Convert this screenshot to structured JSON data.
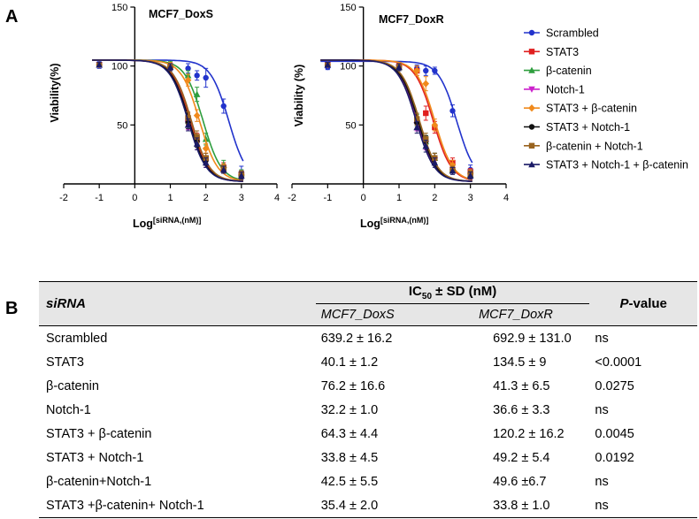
{
  "panel_a_label": "A",
  "panel_b_label": "B",
  "chart_data": [
    {
      "type": "scatter",
      "title": "MCF7_DoxS",
      "ylabel": "Viability(%)",
      "xlabel_prefix": "Log",
      "xlabel_sup": "[siRNA,(nM)]",
      "xlim": [
        -2,
        4
      ],
      "ylim": [
        0,
        150
      ],
      "xticks": [
        "-2",
        "-1",
        "0",
        "1",
        "2",
        "3",
        "4"
      ],
      "yticks": [
        "50",
        "100",
        "150"
      ],
      "x": [
        -1,
        1,
        1.5,
        1.75,
        2,
        2.5,
        3
      ],
      "series": [
        {
          "name": "Scrambled",
          "color": "#2233cc",
          "marker": "circle",
          "values": [
            101,
            100,
            98,
            92,
            90,
            66,
            10
          ],
          "err": [
            3,
            3,
            4,
            4,
            8,
            6,
            5
          ]
        },
        {
          "name": "STAT3",
          "color": "#e02020",
          "marker": "square",
          "values": [
            101,
            100,
            55,
            38,
            22,
            14,
            8
          ],
          "err": [
            2,
            3,
            5,
            5,
            4,
            4,
            3
          ]
        },
        {
          "name": "β-catenin",
          "color": "#2e9e3e",
          "marker": "triangle-up",
          "values": [
            101,
            101,
            92,
            76,
            38,
            16,
            9
          ],
          "err": [
            2,
            3,
            4,
            6,
            5,
            4,
            3
          ]
        },
        {
          "name": "Notch-1",
          "color": "#cc22cc",
          "marker": "triangle-down",
          "values": [
            101,
            99,
            51,
            34,
            18,
            12,
            7
          ],
          "err": [
            2,
            3,
            5,
            5,
            4,
            3,
            3
          ]
        },
        {
          "name": "STAT3 + β-catenin",
          "color": "#f08a1c",
          "marker": "diamond",
          "values": [
            101,
            100,
            88,
            58,
            30,
            14,
            8
          ],
          "err": [
            2,
            3,
            5,
            5,
            4,
            3,
            3
          ]
        },
        {
          "name": "STAT3 + Notch-1",
          "color": "#111111",
          "marker": "circle",
          "values": [
            101,
            99,
            52,
            36,
            20,
            12,
            7
          ],
          "err": [
            2,
            3,
            5,
            5,
            4,
            3,
            3
          ]
        },
        {
          "name": "β-catenin + Notch-1",
          "color": "#9a6420",
          "marker": "square",
          "values": [
            101,
            99,
            56,
            40,
            22,
            13,
            8
          ],
          "err": [
            2,
            3,
            5,
            5,
            4,
            3,
            3
          ]
        },
        {
          "name": "STAT3 + Notch-1 + β-catenin",
          "color": "#1a1a66",
          "marker": "triangle-up",
          "values": [
            101,
            99,
            50,
            34,
            18,
            12,
            7
          ],
          "err": [
            2,
            3,
            5,
            5,
            4,
            3,
            3
          ]
        }
      ]
    },
    {
      "type": "scatter",
      "title": "MCF7_DoxR",
      "ylabel": "Viability (%)",
      "xlabel_prefix": "Log",
      "xlabel_sup": "[siRNA,(nM)]",
      "xlim": [
        -2,
        4
      ],
      "ylim": [
        0,
        150
      ],
      "xticks": [
        "-2",
        "-1",
        "0",
        "1",
        "2",
        "3",
        "4"
      ],
      "yticks": [
        "50",
        "100",
        "150"
      ],
      "x": [
        -1,
        1,
        1.5,
        1.75,
        2,
        2.5,
        3
      ],
      "series": [
        {
          "name": "Scrambled",
          "color": "#2233cc",
          "marker": "circle",
          "values": [
            99,
            100,
            98,
            96,
            96,
            62,
            12
          ],
          "err": [
            2,
            3,
            3,
            4,
            3,
            5,
            4
          ]
        },
        {
          "name": "STAT3",
          "color": "#e02020",
          "marker": "square",
          "values": [
            101,
            100,
            96,
            60,
            48,
            18,
            10
          ],
          "err": [
            2,
            3,
            4,
            6,
            5,
            4,
            3
          ]
        },
        {
          "name": "β-catenin",
          "color": "#2e9e3e",
          "marker": "triangle-up",
          "values": [
            101,
            99,
            54,
            36,
            22,
            12,
            8
          ],
          "err": [
            2,
            3,
            5,
            5,
            4,
            3,
            3
          ]
        },
        {
          "name": "Notch-1",
          "color": "#cc22cc",
          "marker": "triangle-down",
          "values": [
            101,
            99,
            50,
            34,
            20,
            12,
            7
          ],
          "err": [
            2,
            3,
            5,
            5,
            4,
            3,
            3
          ]
        },
        {
          "name": "STAT3 + β-catenin",
          "color": "#f08a1c",
          "marker": "diamond",
          "values": [
            101,
            100,
            96,
            85,
            50,
            16,
            9
          ],
          "err": [
            2,
            3,
            4,
            6,
            5,
            4,
            3
          ]
        },
        {
          "name": "STAT3 + Notch-1",
          "color": "#111111",
          "marker": "circle",
          "values": [
            101,
            99,
            52,
            36,
            22,
            12,
            8
          ],
          "err": [
            2,
            3,
            5,
            5,
            4,
            3,
            3
          ]
        },
        {
          "name": "β-catenin + Notch-1",
          "color": "#9a6420",
          "marker": "square",
          "values": [
            101,
            99,
            55,
            38,
            22,
            12,
            8
          ],
          "err": [
            2,
            3,
            5,
            5,
            4,
            3,
            3
          ]
        },
        {
          "name": "STAT3 + Notch-1 + β-catenin",
          "color": "#1a1a66",
          "marker": "triangle-up",
          "values": [
            101,
            99,
            48,
            32,
            18,
            11,
            7
          ],
          "err": [
            2,
            3,
            5,
            5,
            4,
            3,
            3
          ]
        }
      ]
    }
  ],
  "legend": [
    {
      "label": "Scrambled",
      "color": "#2233cc",
      "marker": "circle"
    },
    {
      "label": "STAT3",
      "color": "#e02020",
      "marker": "square"
    },
    {
      "label": "β-catenin",
      "color": "#2e9e3e",
      "marker": "triangle-up"
    },
    {
      "label": "Notch-1",
      "color": "#cc22cc",
      "marker": "triangle-down"
    },
    {
      "label": "STAT3 + β-catenin",
      "color": "#f08a1c",
      "marker": "diamond"
    },
    {
      "label": "STAT3 + Notch-1",
      "color": "#111111",
      "marker": "circle"
    },
    {
      "label": "β-catenin + Notch-1",
      "color": "#9a6420",
      "marker": "square"
    },
    {
      "label": "STAT3 + Notch-1 + β-catenin",
      "color": "#1a1a66",
      "marker": "triangle-up"
    }
  ],
  "table": {
    "col_siRNA": "siRNA",
    "col_ic50_prefix": "IC",
    "col_ic50_sub": "50",
    "col_ic50_suffix": " ± SD (nM)",
    "col_doxs": "MCF7_DoxS",
    "col_doxr": "MCF7_DoxR",
    "col_p_italic": "P",
    "col_p_rest": "-value",
    "rows": [
      {
        "name": "Scrambled",
        "doxs": "639.2 ± 16.2",
        "doxr": "692.9 ±  131.0",
        "p": "ns"
      },
      {
        "name": "STAT3",
        "doxs": "40.1 ±  1.2",
        "doxr": "134.5 ± 9",
        "p": "<0.0001"
      },
      {
        "name": "β-catenin",
        "doxs": "76.2 ± 16.6",
        "doxr": "41.3 ± 6.5",
        "p": "0.0275"
      },
      {
        "name": "Notch-1",
        "doxs": "32.2 ± 1.0",
        "doxr": "36.6 ± 3.3",
        "p": "ns"
      },
      {
        "name": "STAT3 + β-catenin",
        "doxs": "64.3 ± 4.4",
        "doxr": "120.2 ± 16.2",
        "p": "0.0045"
      },
      {
        "name": "STAT3 + Notch-1",
        "doxs": "33.8 ± 4.5",
        "doxr": "49.2 ± 5.4",
        "p": "0.0192"
      },
      {
        "name": "β-catenin+Notch-1",
        "doxs": "42.5 ± 5.5",
        "doxr": "49.6 ±6.7",
        "p": "ns"
      },
      {
        "name": "STAT3 +β-catenin+ Notch-1",
        "doxs": "35.4 ± 2.0",
        "doxr": "33.8 ± 1.0",
        "p": "ns"
      }
    ]
  }
}
